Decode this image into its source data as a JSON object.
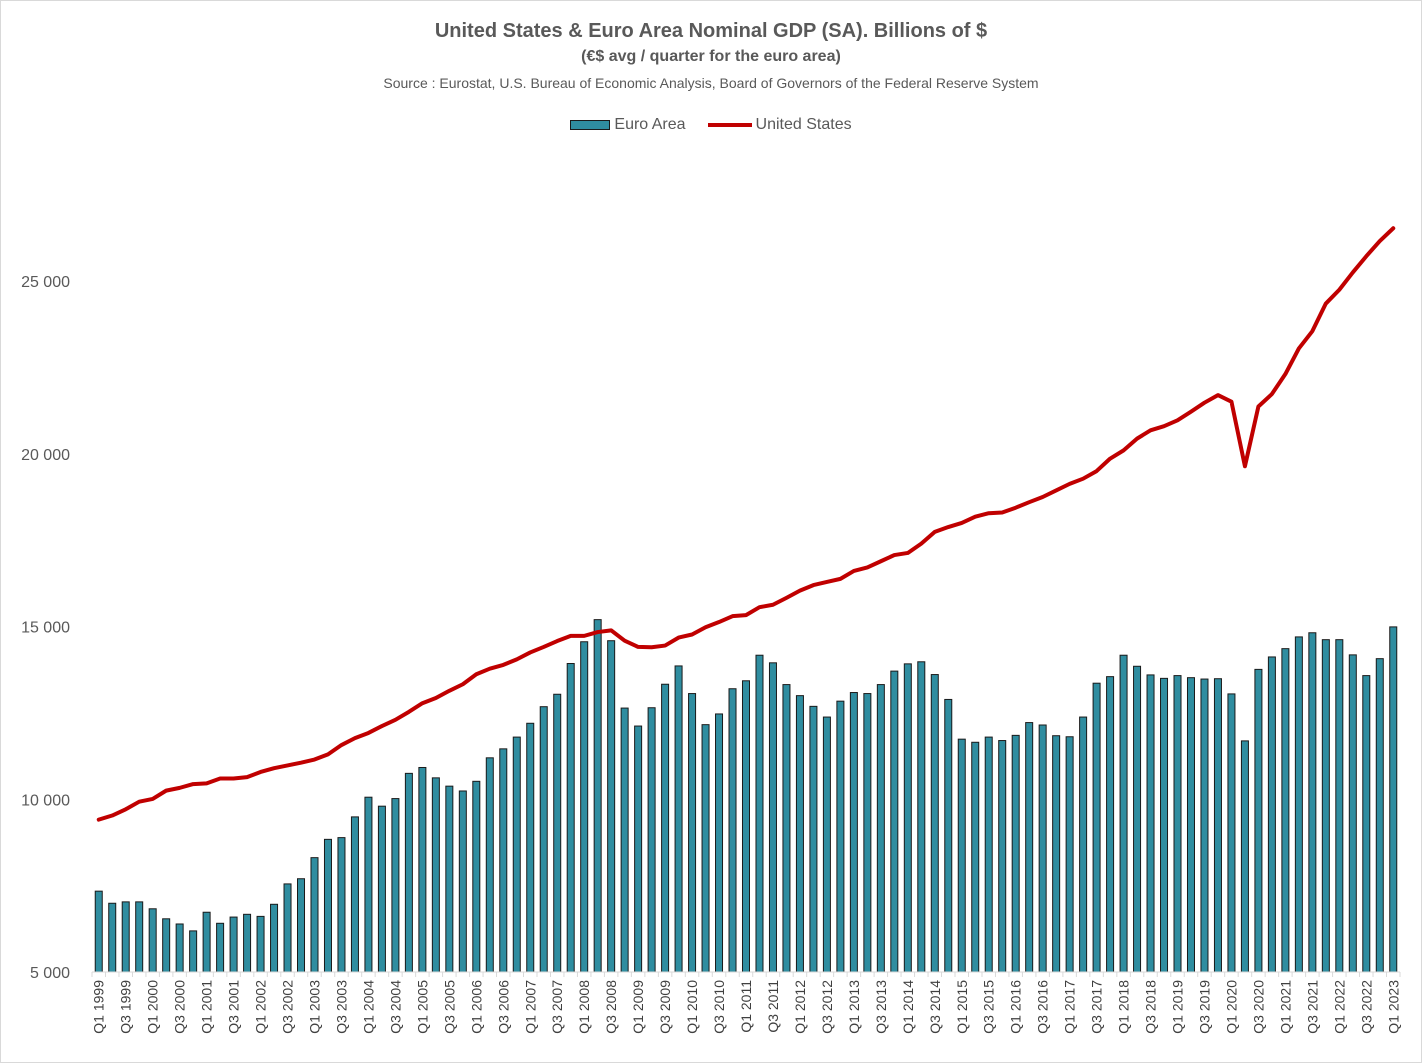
{
  "title": "United States & Euro Area Nominal  GDP (SA). Billions of $",
  "subtitle": "(€$ avg / quarter for the euro area)",
  "source": "Source : Eurostat, U.S. Bureau of Economic Analysis, Board of Governors of the Federal Reserve System",
  "legend": {
    "euro": "Euro Area",
    "us": "United States"
  },
  "colors": {
    "bar": "#2f8da0",
    "bar_edge": "#1a1a1a",
    "line": "#c00000",
    "axis": "#d9d9d9",
    "text": "#595959"
  },
  "chart_data": {
    "type": "bar+line",
    "categories": [
      "Q1 1999",
      "Q2 1999",
      "Q3 1999",
      "Q4 1999",
      "Q1 2000",
      "Q2 2000",
      "Q3 2000",
      "Q4 2000",
      "Q1 2001",
      "Q2 2001",
      "Q3 2001",
      "Q4 2001",
      "Q1 2002",
      "Q2 2002",
      "Q3 2002",
      "Q4 2002",
      "Q1 2003",
      "Q2 2003",
      "Q3 2003",
      "Q4 2003",
      "Q1 2004",
      "Q2 2004",
      "Q3 2004",
      "Q4 2004",
      "Q1 2005",
      "Q2 2005",
      "Q3 2005",
      "Q4 2005",
      "Q1 2006",
      "Q2 2006",
      "Q3 2006",
      "Q4 2006",
      "Q1 2007",
      "Q2 2007",
      "Q3 2007",
      "Q4 2007",
      "Q1 2008",
      "Q2 2008",
      "Q3 2008",
      "Q4 2008",
      "Q1 2009",
      "Q2 2009",
      "Q3 2009",
      "Q4 2009",
      "Q1 2010",
      "Q2 2010",
      "Q3 2010",
      "Q4 2010",
      "Q1 2011",
      "Q2 2011",
      "Q3 2011",
      "Q4 2011",
      "Q1 2012",
      "Q2 2012",
      "Q3 2012",
      "Q4 2012",
      "Q1 2013",
      "Q2 2013",
      "Q3 2013",
      "Q4 2013",
      "Q1 2014",
      "Q2 2014",
      "Q3 2014",
      "Q4 2014",
      "Q1 2015",
      "Q2 2015",
      "Q3 2015",
      "Q4 2015",
      "Q1 2016",
      "Q2 2016",
      "Q3 2016",
      "Q4 2016",
      "Q1 2017",
      "Q2 2017",
      "Q3 2017",
      "Q4 2017",
      "Q1 2018",
      "Q2 2018",
      "Q3 2018",
      "Q4 2018",
      "Q1 2019",
      "Q2 2019",
      "Q3 2019",
      "Q4 2019",
      "Q1 2020",
      "Q2 2020",
      "Q3 2020",
      "Q4 2020",
      "Q1 2021",
      "Q2 2021",
      "Q3 2021",
      "Q4 2021",
      "Q1 2022",
      "Q2 2022",
      "Q3 2022",
      "Q4 2022",
      "Q1 2023"
    ],
    "tick_labels": [
      "Q1 1999",
      "Q3 1999",
      "Q1 2000",
      "Q3 2000",
      "Q1 2001",
      "Q3 2001",
      "Q1 2002",
      "Q3 2002",
      "Q1 2003",
      "Q3 2003",
      "Q1 2004",
      "Q3 2004",
      "Q1 2005",
      "Q3 2005",
      "Q1 2006",
      "Q3 2006",
      "Q1 2007",
      "Q3 2007",
      "Q1 2008",
      "Q3 2008",
      "Q1 2009",
      "Q3 2009",
      "Q1 2010",
      "Q3 2010",
      "Q1 2011",
      "Q3 2011",
      "Q1 2012",
      "Q3 2012",
      "Q1 2013",
      "Q3 2013",
      "Q1 2014",
      "Q3 2014",
      "Q1 2015",
      "Q3 2015",
      "Q1 2016",
      "Q3 2016",
      "Q1 2017",
      "Q3 2017",
      "Q1 2018",
      "Q3 2018",
      "Q1 2019",
      "Q3 2019",
      "Q1 2020",
      "Q3 2020",
      "Q1 2021",
      "Q3 2021",
      "Q1 2022",
      "Q3 2022",
      "Q1 2023"
    ],
    "series": [
      {
        "name": "Euro Area",
        "kind": "bar",
        "values": [
          7340,
          6990,
          7030,
          7030,
          6830,
          6540,
          6390,
          6190,
          6730,
          6410,
          6590,
          6670,
          6610,
          6960,
          7550,
          7700,
          8310,
          8840,
          8890,
          9490,
          10060,
          9800,
          10020,
          10750,
          10920,
          10620,
          10380,
          10240,
          10520,
          11200,
          11460,
          11800,
          12200,
          12680,
          13040,
          13930,
          14560,
          15200,
          14590,
          12640,
          12120,
          12650,
          13330,
          13860,
          13060,
          12160,
          12470,
          13200,
          13430,
          14170,
          13950,
          13320,
          13000,
          12690,
          12380,
          12840,
          13090,
          13060,
          13320,
          13710,
          13920,
          13980,
          13610,
          12890,
          11740,
          11650,
          11800,
          11700,
          11850,
          12220,
          12150,
          11840,
          11810,
          12380,
          13360,
          13550,
          14170,
          13850,
          13600,
          13500,
          13580,
          13520,
          13480,
          13490,
          13050,
          11690,
          13760,
          14120,
          14360,
          14700,
          14820,
          14620,
          14620,
          14180,
          13580,
          14070,
          14990
        ]
      },
      {
        "name": "United States",
        "kind": "line",
        "values": [
          9410,
          9530,
          9710,
          9930,
          10010,
          10250,
          10330,
          10440,
          10460,
          10600,
          10600,
          10640,
          10790,
          10900,
          10980,
          11060,
          11150,
          11300,
          11570,
          11770,
          11920,
          12120,
          12300,
          12530,
          12780,
          12930,
          13140,
          13330,
          13620,
          13780,
          13890,
          14050,
          14250,
          14410,
          14580,
          14730,
          14730,
          14840,
          14890,
          14590,
          14410,
          14400,
          14450,
          14680,
          14770,
          14980,
          15130,
          15300,
          15330,
          15560,
          15630,
          15830,
          16040,
          16200,
          16290,
          16380,
          16610,
          16710,
          16890,
          17070,
          17130,
          17400,
          17740,
          17880,
          18000,
          18180,
          18280,
          18300,
          18440,
          18600,
          18750,
          18940,
          19130,
          19280,
          19500,
          19860,
          20100,
          20440,
          20680,
          20800,
          20970,
          21220,
          21480,
          21700,
          21510,
          19640,
          21370,
          21730,
          22310,
          23050,
          23550,
          24350,
          24750,
          25250,
          25720,
          26160,
          26530
        ]
      }
    ],
    "ylim": [
      5000,
      27000
    ],
    "y_ticks": [
      5000,
      10000,
      15000,
      20000,
      25000
    ],
    "y_tick_labels": [
      "5 000",
      "10 000",
      "15 000",
      "20 000",
      "25 000"
    ],
    "grid": false,
    "legend_position": "top-center"
  }
}
